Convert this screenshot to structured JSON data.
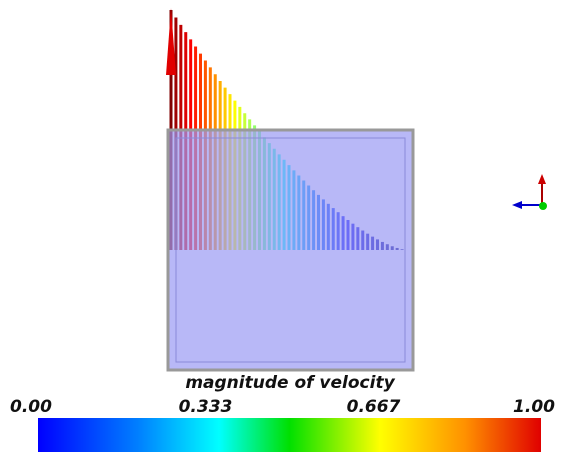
{
  "colorbar": {
    "title": "magnitude of velocity",
    "range": [
      0,
      1
    ],
    "ticks": [
      {
        "value": 0,
        "label": "0.00"
      },
      {
        "value": 0.333,
        "label": "0.333"
      },
      {
        "value": 0.667,
        "label": "0.667"
      },
      {
        "value": 1,
        "label": "1.00"
      }
    ]
  }
}
